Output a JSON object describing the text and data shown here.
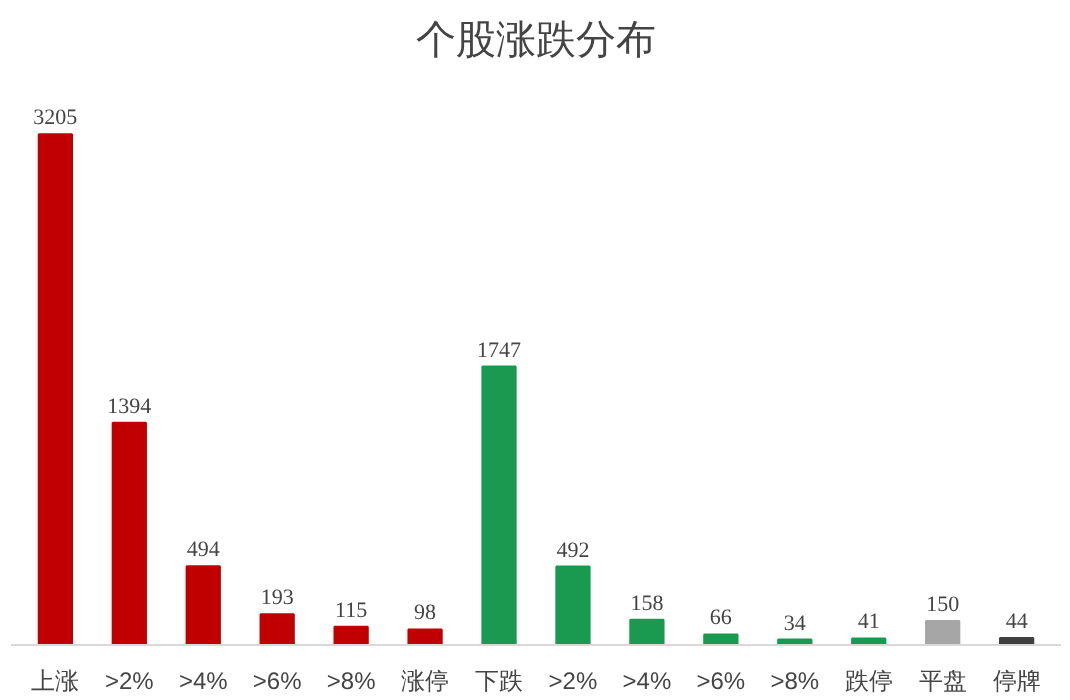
{
  "chart_data": {
    "type": "bar",
    "title": "个股涨跌分布",
    "categories": [
      "上涨",
      ">2%",
      ">4%",
      ">6%",
      ">8%",
      "涨停",
      "下跌",
      ">2%",
      ">4%",
      ">6%",
      ">8%",
      "跌停",
      "平盘",
      "停牌"
    ],
    "values": [
      3205,
      1394,
      494,
      193,
      115,
      98,
      1747,
      492,
      158,
      66,
      34,
      41,
      150,
      44
    ],
    "colors": [
      "#c00000",
      "#c00000",
      "#c00000",
      "#c00000",
      "#c00000",
      "#c00000",
      "#1a9a50",
      "#1a9a50",
      "#1a9a50",
      "#1a9a50",
      "#1a9a50",
      "#1a9a50",
      "#a6a6a6",
      "#404040"
    ],
    "data_labels": true
  }
}
